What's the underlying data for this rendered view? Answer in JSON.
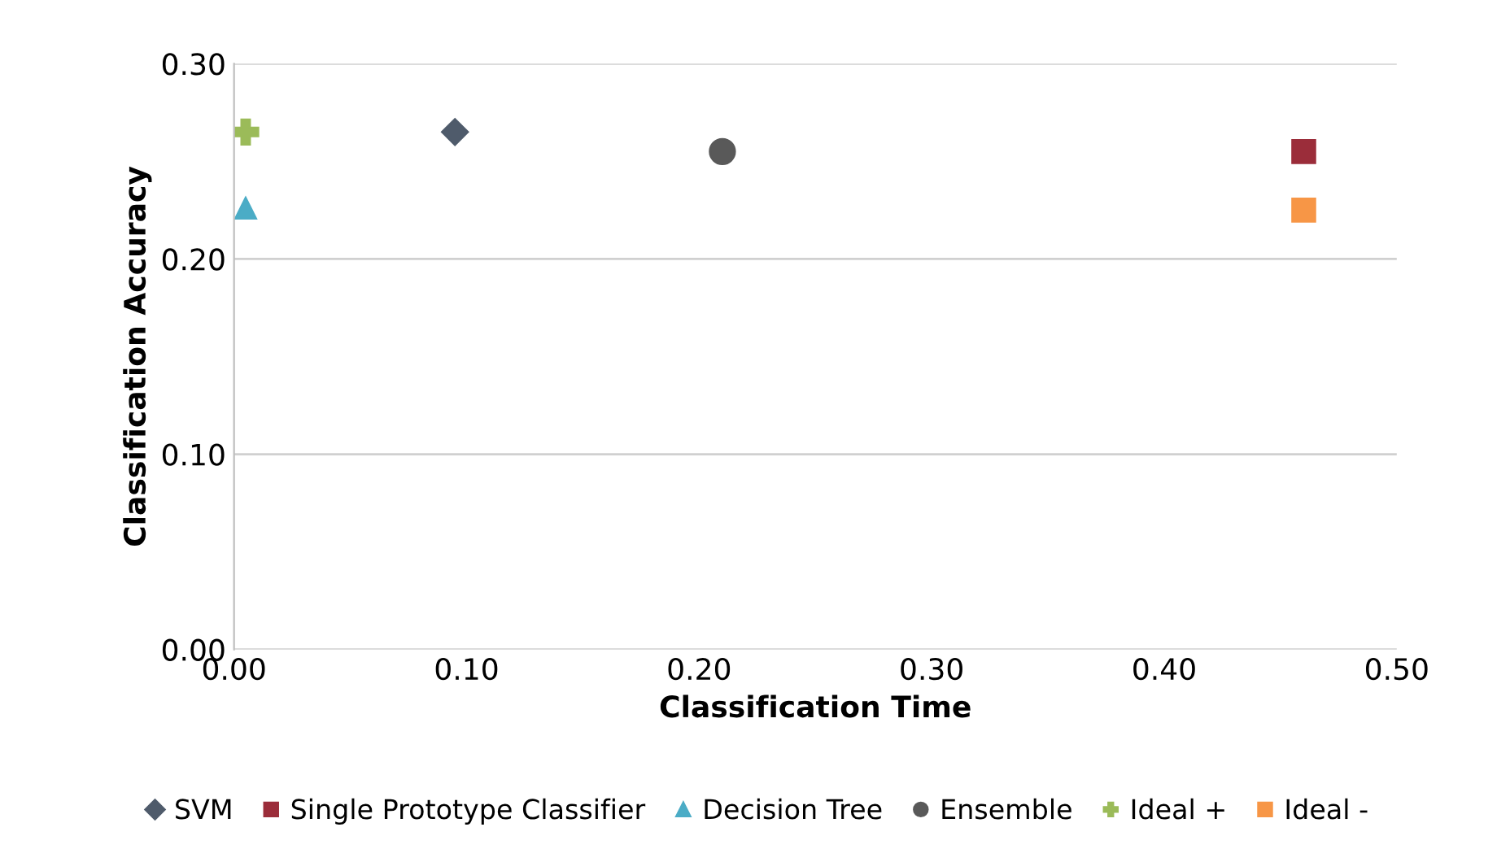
{
  "chart_data": {
    "type": "scatter",
    "xlabel": "Classification Time",
    "ylabel": "Classification Accuracy",
    "xlim": [
      0,
      0.5
    ],
    "xticks": [
      {
        "value": 0,
        "label": "0.00"
      },
      {
        "value": 0.1,
        "label": "0.10"
      },
      {
        "value": 0.2,
        "label": "0.20"
      },
      {
        "value": 0.3,
        "label": "0.30"
      },
      {
        "value": 0.4,
        "label": "0.40"
      },
      {
        "value": 0.5,
        "label": "0.50"
      }
    ],
    "ylim": [
      0,
      0.3
    ],
    "yticks": [
      {
        "value": 0,
        "label": "0.00"
      },
      {
        "value": 0.1,
        "label": "0.10"
      },
      {
        "value": 0.2,
        "label": "0.20"
      },
      {
        "value": 0.3,
        "label": "0.30"
      }
    ],
    "grid": "y",
    "legend": "bottom",
    "series": [
      {
        "name": "SVM",
        "color": "#4f5b6b",
        "marker": "diamond",
        "x": [
          0.095
        ],
        "values": [
          0.265
        ]
      },
      {
        "name": "Single Prototype Classifier",
        "color": "#9b2d3a",
        "marker": "square",
        "x": [
          0.46
        ],
        "values": [
          0.255
        ]
      },
      {
        "name": "Decision Tree",
        "color": "#4bacc6",
        "marker": "triangle",
        "x": [
          0.005
        ],
        "values": [
          0.226
        ]
      },
      {
        "name": "Ensemble",
        "color": "#595959",
        "marker": "circle",
        "x": [
          0.21
        ],
        "values": [
          0.255
        ]
      },
      {
        "name": "Ideal +",
        "color": "#9bbb59",
        "marker": "cross",
        "x": [
          0.005
        ],
        "values": [
          0.265
        ]
      },
      {
        "name": "Ideal -",
        "color": "#f79646",
        "marker": "square",
        "x": [
          0.46
        ],
        "values": [
          0.225
        ]
      }
    ]
  }
}
